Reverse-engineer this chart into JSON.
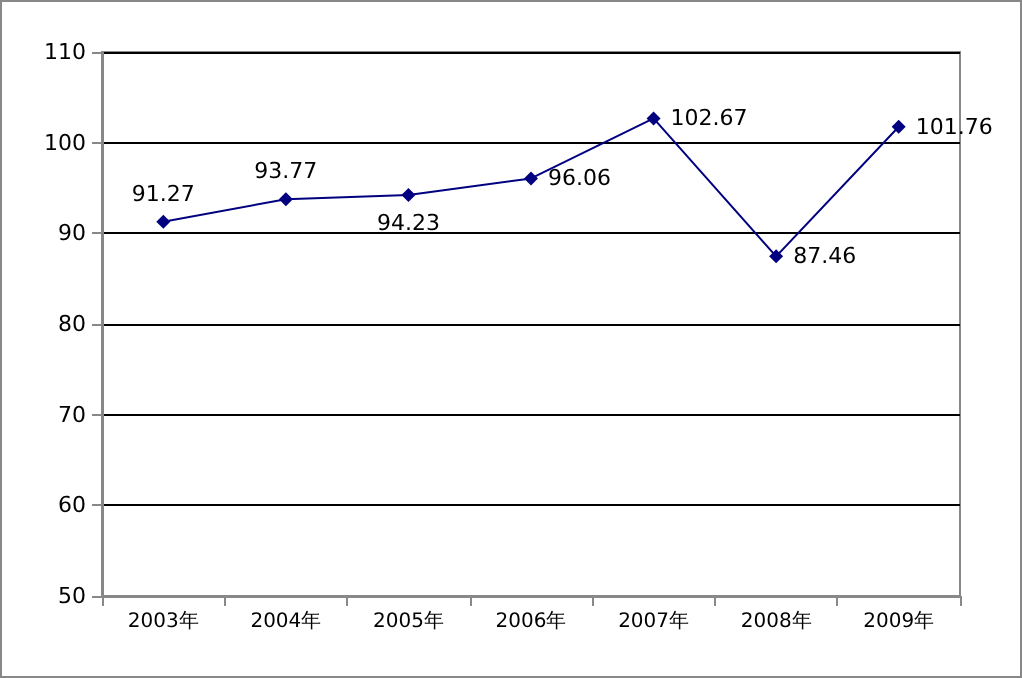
{
  "chart_data": {
    "type": "line",
    "categories": [
      "2003年",
      "2004年",
      "2005年",
      "2006年",
      "2007年",
      "2008年",
      "2009年"
    ],
    "series": [
      {
        "color": "#000080",
        "values": [
          91.27,
          93.77,
          94.23,
          96.06,
          102.67,
          87.46,
          101.76
        ]
      }
    ],
    "ylim": [
      50,
      110
    ],
    "yticks": [
      50,
      60,
      70,
      80,
      90,
      100,
      110
    ],
    "grid": "y",
    "marker": "diamond",
    "line_style": "solid",
    "data_labels": true
  }
}
